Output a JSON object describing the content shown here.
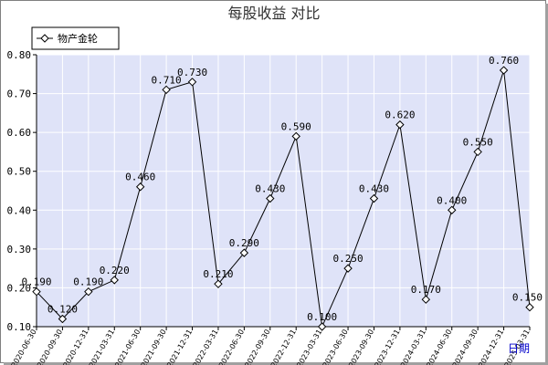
{
  "chart_data": {
    "type": "line",
    "title": "每股收益  对比",
    "categories": [
      "2020-06-30",
      "2020-09-30",
      "2020-12-31",
      "2021-03-31",
      "2021-06-30",
      "2021-09-30",
      "2021-12-31",
      "2022-03-31",
      "2022-06-30",
      "2022-09-30",
      "2022-12-31",
      "2023-03-31",
      "2023-06-30",
      "2023-09-30",
      "2023-12-31",
      "2024-03-31",
      "2024-06-30",
      "2024-09-30",
      "2024-12-31",
      "2025-03-31"
    ],
    "series": [
      {
        "name": "物产金轮",
        "values": [
          0.19,
          0.12,
          0.19,
          0.22,
          0.46,
          0.71,
          0.73,
          0.21,
          0.29,
          0.43,
          0.59,
          0.1,
          0.25,
          0.43,
          0.62,
          0.17,
          0.4,
          0.55,
          0.76,
          0.15
        ],
        "labels": [
          "0.190",
          "0.120",
          "0.190",
          "0.220",
          "0.460",
          "0.710",
          "0.730",
          "0.210",
          "0.290",
          "0.430",
          "0.590",
          "0.100",
          "0.250",
          "0.430",
          "0.620",
          "0.170",
          "0.400",
          "0.550",
          "0.760",
          "0.150"
        ]
      }
    ],
    "ylim": [
      0.1,
      0.8
    ],
    "yticks": [
      0.1,
      0.2,
      0.3,
      0.4,
      0.5,
      0.6,
      0.7,
      0.8
    ],
    "ytick_labels": [
      "0.10",
      "0.20",
      "0.30",
      "0.40",
      "0.50",
      "0.60",
      "0.70",
      "0.80"
    ],
    "legend_position": "top-left",
    "grid": true,
    "extra_label": "日期",
    "colors": {
      "plot_bg": "#dfe3f8",
      "grid": "#ffffff",
      "line": "#000000",
      "marker_fill": "#ffffff",
      "extra_label": "#0000cc"
    }
  }
}
